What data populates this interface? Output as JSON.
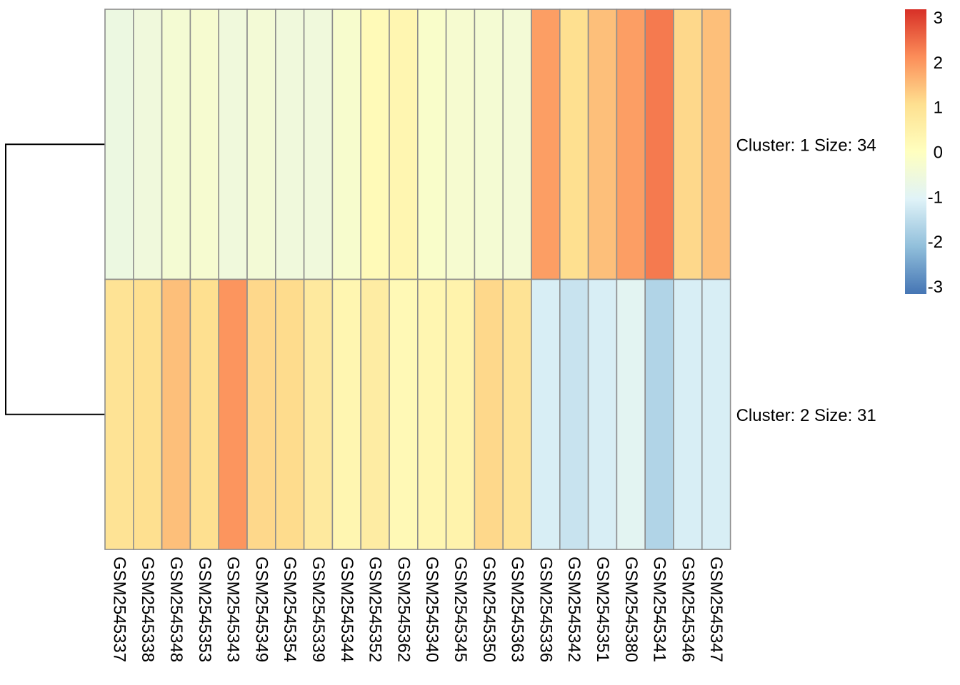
{
  "chart_data": {
    "type": "heatmap",
    "title": "",
    "xlabel": "",
    "ylabel": "",
    "columns": [
      "GSM2545337",
      "GSM2545338",
      "GSM2545348",
      "GSM2545353",
      "GSM2545343",
      "GSM2545349",
      "GSM2545354",
      "GSM2545339",
      "GSM2545344",
      "GSM2545352",
      "GSM2545362",
      "GSM2545340",
      "GSM2545345",
      "GSM2545350",
      "GSM2545363",
      "GSM2545336",
      "GSM2545342",
      "GSM2545351",
      "GSM2545380",
      "GSM2545341",
      "GSM2545346",
      "GSM2545347"
    ],
    "rows": [
      "Cluster: 1 Size: 34",
      "Cluster: 2 Size: 31"
    ],
    "values": [
      [
        -0.6,
        -0.5,
        -0.35,
        -0.3,
        -0.5,
        -0.4,
        -0.5,
        -0.5,
        -0.25,
        0.15,
        0.3,
        -0.2,
        -0.3,
        -0.35,
        -0.4,
        1.8,
        1.0,
        1.4,
        1.8,
        2.2,
        1.1,
        1.4
      ],
      [
        0.9,
        1.0,
        1.4,
        1.0,
        1.9,
        1.1,
        1.05,
        0.7,
        0.3,
        0.6,
        0.2,
        0.3,
        0.4,
        1.1,
        0.9,
        -1.1,
        -1.3,
        -1.1,
        -0.9,
        -1.6,
        -1.1,
        -1.1
      ]
    ],
    "color_scale": {
      "min": -3,
      "max": 3,
      "ticks": [
        "3",
        "2",
        "1",
        "0",
        "-1",
        "-2",
        "-3"
      ],
      "colors": [
        "#4575b4",
        "#91bfdb",
        "#e0f3f8",
        "#ffffbf",
        "#fee090",
        "#fc8d59",
        "#d73027"
      ]
    },
    "cell_border_color": "#8c8c8c",
    "dendrogram": "rows",
    "legend_position": "top-right"
  }
}
